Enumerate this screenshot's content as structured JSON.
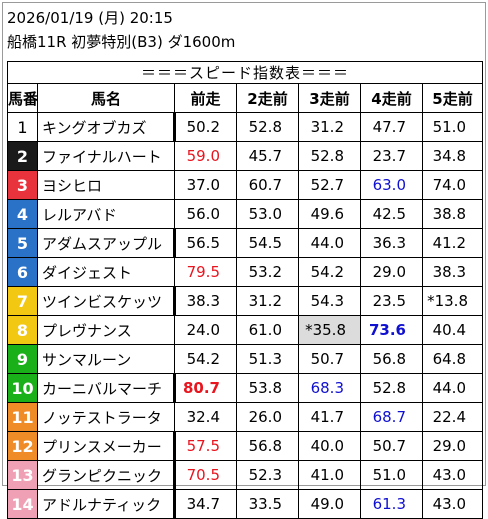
{
  "header": {
    "line1": "2026/01/19 (月) 20:15",
    "line2": "船橋11R 初夢特別(B3) ダ1600m"
  },
  "table": {
    "title": "＝＝＝スピード指数表＝＝＝",
    "columns": [
      "馬番",
      "馬名",
      "前走",
      "2走前",
      "3走前",
      "4走前",
      "5走前"
    ],
    "rows": [
      {
        "num": "1",
        "name": "キングオブカズ",
        "bg": "#ffffff",
        "fg": "#000000",
        "v": [
          "50.2",
          "52.8",
          "31.2",
          "47.7",
          "51.0"
        ]
      },
      {
        "num": "2",
        "name": "ファイナルハート",
        "bg": "#1a1a1a",
        "fg": "#ffffff",
        "v": [
          "59.0",
          "45.7",
          "52.8",
          "23.7",
          "34.8"
        ]
      },
      {
        "num": "3",
        "name": "ヨシヒロ",
        "bg": "#e8323c",
        "fg": "#ffffff",
        "v": [
          "37.0",
          "60.7",
          "52.7",
          "63.0",
          "74.0"
        ]
      },
      {
        "num": "4",
        "name": "レルアバド",
        "bg": "#2a72c8",
        "fg": "#ffffff",
        "v": [
          "56.0",
          "53.0",
          "49.6",
          "42.5",
          "38.8"
        ]
      },
      {
        "num": "5",
        "name": "アダムスアップル",
        "bg": "#2a72c8",
        "fg": "#ffffff",
        "v": [
          "56.5",
          "54.5",
          "44.0",
          "36.3",
          "41.2"
        ]
      },
      {
        "num": "6",
        "name": "ダイジェスト",
        "bg": "#2a72c8",
        "fg": "#ffffff",
        "v": [
          "79.5",
          "53.2",
          "54.2",
          "29.0",
          "38.3"
        ]
      },
      {
        "num": "7",
        "name": "ツインビスケッツ",
        "bg": "#f2c813",
        "fg": "#ffffff",
        "v": [
          "38.3",
          "31.2",
          "54.3",
          "23.5",
          "*13.8"
        ]
      },
      {
        "num": "8",
        "name": "プレヴナンス",
        "bg": "#f2c813",
        "fg": "#ffffff",
        "v": [
          "24.0",
          "61.0",
          "*35.8",
          "73.6",
          "40.4"
        ]
      },
      {
        "num": "9",
        "name": "サンマルーン",
        "bg": "#1ab01a",
        "fg": "#ffffff",
        "v": [
          "54.2",
          "51.3",
          "50.7",
          "56.8",
          "64.8"
        ]
      },
      {
        "num": "10",
        "name": "カーニバルマーチ",
        "bg": "#1ab01a",
        "fg": "#ffffff",
        "v": [
          "80.7",
          "53.8",
          "68.3",
          "52.8",
          "44.0"
        ]
      },
      {
        "num": "11",
        "name": "ノッテストラータ",
        "bg": "#f08c28",
        "fg": "#ffffff",
        "v": [
          "32.4",
          "26.0",
          "41.7",
          "68.7",
          "22.4"
        ]
      },
      {
        "num": "12",
        "name": "プリンスメーカー",
        "bg": "#f08c28",
        "fg": "#ffffff",
        "v": [
          "57.5",
          "56.8",
          "40.0",
          "50.7",
          "29.0"
        ]
      },
      {
        "num": "13",
        "name": "グランピクニック",
        "bg": "#f0a0b4",
        "fg": "#ffffff",
        "v": [
          "70.5",
          "52.3",
          "41.0",
          "51.0",
          "43.0"
        ]
      },
      {
        "num": "14",
        "name": "アドルナティック",
        "bg": "#f0a0b4",
        "fg": "#ffffff",
        "v": [
          "34.7",
          "33.5",
          "49.0",
          "61.3",
          "43.0"
        ]
      }
    ],
    "styles": {
      "2-0": "red",
      "3-3": "blue",
      "6-0": "red",
      "8-2": "shade",
      "8-3": "blue bold",
      "10-0": "red bold",
      "10-2": "blue",
      "11-3": "blue",
      "12-0": "red",
      "13-0": "red",
      "14-3": "blue"
    },
    "bar_rows": [
      "1",
      "5",
      "7",
      "10",
      "12",
      "13",
      "14"
    ]
  }
}
